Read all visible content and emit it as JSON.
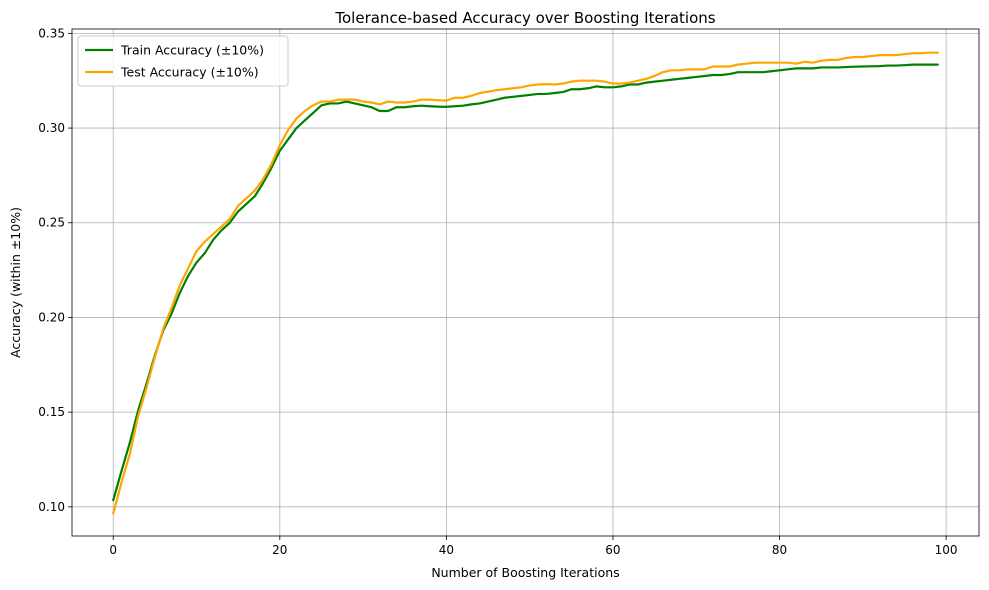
{
  "chart_data": {
    "type": "line",
    "title": "Tolerance-based Accuracy over Boosting Iterations",
    "xlabel": "Number of Boosting Iterations",
    "ylabel": "Accuracy (within ±10%)",
    "xlim": [
      -4.95,
      103.95
    ],
    "ylim": [
      0.0846,
      0.3523
    ],
    "xticks": [
      0,
      20,
      40,
      60,
      80,
      100
    ],
    "yticks": [
      0.1,
      0.15,
      0.2,
      0.25,
      0.3,
      0.35
    ],
    "xtick_labels": [
      "0",
      "20",
      "40",
      "60",
      "80",
      "100"
    ],
    "ytick_labels": [
      "0.10",
      "0.15",
      "0.20",
      "0.25",
      "0.30",
      "0.35"
    ],
    "grid": true,
    "legend_position": "top-left",
    "series": [
      {
        "name": "Train Accuracy (±10%)",
        "color": "#008000",
        "x_start": 0,
        "values": [
          0.1035,
          0.119,
          0.134,
          0.151,
          0.165,
          0.18,
          0.193,
          0.202,
          0.213,
          0.222,
          0.229,
          0.234,
          0.241,
          0.246,
          0.25,
          0.256,
          0.26,
          0.264,
          0.271,
          0.279,
          0.288,
          0.294,
          0.3,
          0.304,
          0.308,
          0.312,
          0.313,
          0.313,
          0.314,
          0.313,
          0.312,
          0.311,
          0.309,
          0.309,
          0.311,
          0.311,
          0.3115,
          0.3118,
          0.3115,
          0.3113,
          0.3112,
          0.3115,
          0.3118,
          0.3125,
          0.313,
          0.314,
          0.315,
          0.316,
          0.3165,
          0.317,
          0.3175,
          0.318,
          0.318,
          0.3185,
          0.319,
          0.3205,
          0.3205,
          0.321,
          0.322,
          0.3215,
          0.3215,
          0.322,
          0.323,
          0.323,
          0.324,
          0.3245,
          0.325,
          0.3255,
          0.326,
          0.3265,
          0.327,
          0.3275,
          0.328,
          0.328,
          0.3285,
          0.3295,
          0.3295,
          0.3295,
          0.3295,
          0.33,
          0.3305,
          0.331,
          0.3315,
          0.3315,
          0.3315,
          0.332,
          0.332,
          0.332,
          0.3322,
          0.3324,
          0.3325,
          0.3326,
          0.3327,
          0.333,
          0.333,
          0.3332,
          0.3335,
          0.3335,
          0.3335,
          0.3335
        ]
      },
      {
        "name": "Test Accuracy (±10%)",
        "color": "#ffa500",
        "x_start": 0,
        "values": [
          0.0965,
          0.113,
          0.128,
          0.148,
          0.163,
          0.179,
          0.194,
          0.205,
          0.217,
          0.226,
          0.235,
          0.24,
          0.244,
          0.248,
          0.252,
          0.259,
          0.263,
          0.267,
          0.273,
          0.281,
          0.291,
          0.299,
          0.305,
          0.309,
          0.312,
          0.314,
          0.314,
          0.315,
          0.315,
          0.315,
          0.314,
          0.3135,
          0.3125,
          0.314,
          0.3135,
          0.3135,
          0.314,
          0.315,
          0.315,
          0.3147,
          0.3145,
          0.316,
          0.316,
          0.317,
          0.3185,
          0.3192,
          0.32,
          0.3205,
          0.321,
          0.3215,
          0.3225,
          0.323,
          0.3232,
          0.323,
          0.3235,
          0.3245,
          0.325,
          0.325,
          0.325,
          0.3245,
          0.3235,
          0.3235,
          0.324,
          0.325,
          0.326,
          0.3275,
          0.3295,
          0.3305,
          0.3305,
          0.331,
          0.331,
          0.331,
          0.3325,
          0.3325,
          0.3325,
          0.3335,
          0.334,
          0.3345,
          0.3345,
          0.3345,
          0.3345,
          0.3345,
          0.334,
          0.335,
          0.3345,
          0.3355,
          0.336,
          0.336,
          0.337,
          0.3375,
          0.3375,
          0.338,
          0.3385,
          0.3385,
          0.3385,
          0.339,
          0.3395,
          0.3395,
          0.3398,
          0.3398
        ]
      }
    ]
  }
}
